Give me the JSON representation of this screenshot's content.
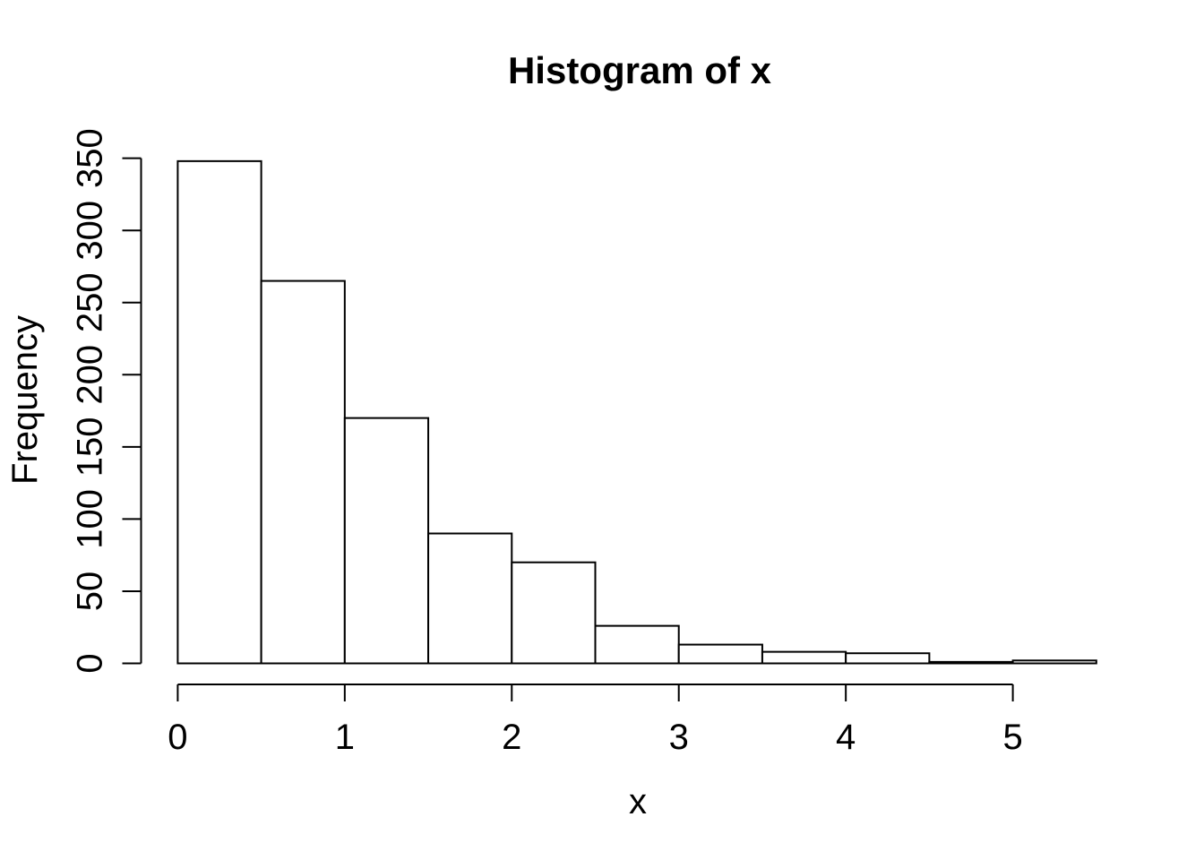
{
  "chart_data": {
    "type": "bar",
    "subtype": "histogram",
    "title": "Histogram of x",
    "xlabel": "x",
    "ylabel": "Frequency",
    "bin_edges": [
      0,
      0.5,
      1,
      1.5,
      2,
      2.5,
      3,
      3.5,
      4,
      4.5,
      5,
      5.5
    ],
    "counts": [
      348,
      265,
      170,
      90,
      70,
      26,
      13,
      8,
      7,
      1,
      2
    ],
    "x_ticks": [
      0,
      1,
      2,
      3,
      4,
      5
    ],
    "y_ticks": [
      0,
      50,
      100,
      150,
      200,
      250,
      300,
      350
    ],
    "xlim": [
      0,
      5.5
    ],
    "ylim": [
      0,
      350
    ],
    "grid": false,
    "legend_position": "none",
    "bar_fill": "#ffffff",
    "bar_stroke": "#000000",
    "axis_color": "#000000",
    "text_color": "#000000",
    "background": "#ffffff"
  }
}
